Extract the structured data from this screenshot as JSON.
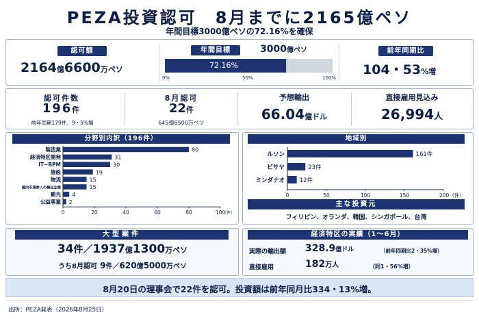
{
  "header": {
    "title": "PEZA投資認可　8月までに2165億ペソ",
    "subtitle": "年間目標3000億ペソの72.16%を確保"
  },
  "kpi": {
    "approved_label": "認可額",
    "approved_num1": "2164",
    "approved_unit1": "億",
    "approved_num2": "6600",
    "approved_unit2": "万ペソ",
    "target_label": "年間目標",
    "target_value": "3000",
    "target_unit": "億ペソ",
    "progress_pct": 72.16,
    "progress_label": "72.16%",
    "progress_ticks": [
      "0%",
      "50%",
      "100%"
    ],
    "yoy_label": "前年同期比",
    "yoy_value": "104・53",
    "yoy_unit": "%増"
  },
  "stats": {
    "count_label": "認可件数",
    "count_value": "196",
    "count_unit": "件",
    "count_note": "前年同期179件、9・5%増",
    "aug_label": "8月認可",
    "aug_value": "22",
    "aug_unit": "件",
    "aug_note": "645億6500万ペソ",
    "export_label": "予想輸出",
    "export_value": "66.04",
    "export_unit": "億ドル",
    "jobs_label": "直接雇用見込み",
    "jobs_value": "26,994",
    "jobs_unit": "人"
  },
  "sector_chart_title": "分野別内訳（196件）",
  "region_chart_title": "地域別",
  "chart_data": [
    {
      "type": "bar",
      "orientation": "horizontal",
      "title": "分野別内訳（196件）",
      "categories": [
        "製造業",
        "経済特区開発",
        "IT−BPM",
        "施設",
        "物流",
        "国内市場参入の輸出企業",
        "観光",
        "公益事業"
      ],
      "values": [
        80,
        31,
        30,
        19,
        15,
        15,
        4,
        2
      ],
      "xlim": [
        0,
        100
      ],
      "xticks": [
        "0",
        "20",
        "40",
        "60",
        "80",
        "100"
      ],
      "xunit": "（件）",
      "color": "#1d3470"
    },
    {
      "type": "bar",
      "orientation": "horizontal",
      "title": "地域別",
      "categories": [
        "ルソン",
        "ビサヤ",
        "ミンダナオ"
      ],
      "values": [
        161,
        23,
        12
      ],
      "value_labels": [
        "161件",
        "23件",
        "12件"
      ],
      "xlim": [
        0,
        200
      ],
      "xticks": [
        "0",
        "50",
        "100",
        "150",
        "200（件）"
      ],
      "color": "#1d3470"
    }
  ],
  "investors": {
    "title": "主な投資元",
    "text": "フィリピン、オランダ、韓国、シンガポール、台湾"
  },
  "large": {
    "title": "大型案件",
    "line1_a": "34",
    "line1_b": "件／",
    "line1_c": "1937",
    "line1_d": "億",
    "line1_e": "1300",
    "line1_f": "万ペソ",
    "line2_a": "うち8月認可",
    "line2_b": "9",
    "line2_c": "件／",
    "line2_d": "620",
    "line2_e": "億",
    "line2_f": "5000",
    "line2_g": "万ペソ"
  },
  "zone": {
    "title": "経済特区の実績（1〜6月）",
    "export_label": "実際の輸出額",
    "export_value": "328.9",
    "export_unit": "億ドル",
    "export_note": "（前年同期比2・35%増）",
    "jobs_label": "直接雇用",
    "jobs_value": "182",
    "jobs_unit": "万人",
    "jobs_note": "（同1・56%増）"
  },
  "footer": {
    "summary": "8月20日の理事会で22件を認可。投資額は前年同月比334・13%増。",
    "source": "出所：PEZA発表（2026年8月25日）"
  }
}
